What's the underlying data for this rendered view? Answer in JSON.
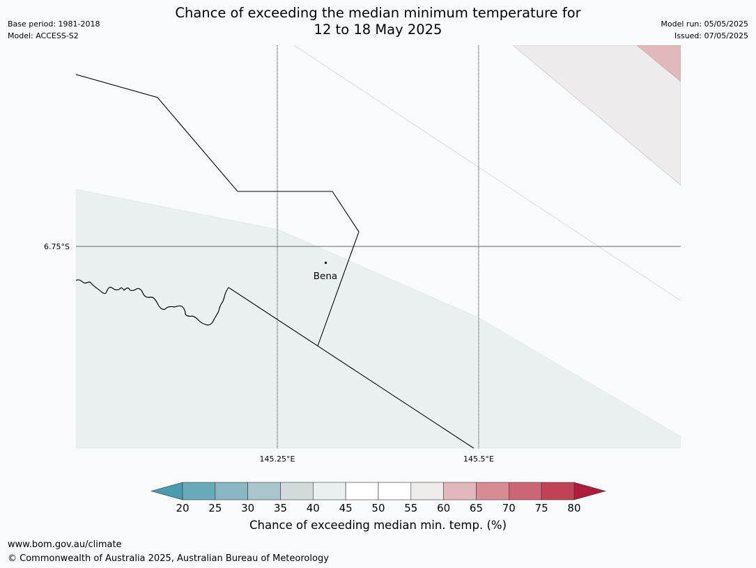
{
  "title_line1": "Chance of exceeding the median minimum temperature for",
  "title_line2": "12 to 18 May 2025",
  "meta": {
    "base_period": "Base period: 1981-2018",
    "model": "Model: ACCESS-S2",
    "model_run": "Model run: 05/05/2025",
    "issued": "Issued: 07/05/2025"
  },
  "map": {
    "lat_label": "6.75°S",
    "lon_labels": [
      "145.25°E",
      "145.5°E"
    ],
    "place": "Bena"
  },
  "colorbar": {
    "ticks": [
      "20",
      "25",
      "30",
      "35",
      "40",
      "45",
      "50",
      "55",
      "60",
      "65",
      "70",
      "75",
      "80"
    ],
    "colors": [
      "#6aaab8",
      "#88b6c2",
      "#a8c6cc",
      "#d2dadb",
      "#eaf0f1",
      "#ffffff",
      "#ffffff",
      "#f0ecec",
      "#e2b8bc",
      "#d78c94",
      "#cc6674",
      "#c14255"
    ],
    "under_color": "#4a9bae",
    "over_color": "#ae1d3c",
    "label": "Chance of exceeding median min. temp. (%)"
  },
  "footer": {
    "url": "www.bom.gov.au/climate",
    "copyright": "© Commonwealth of Australia 2025, Australian Bureau of Meteorology"
  }
}
